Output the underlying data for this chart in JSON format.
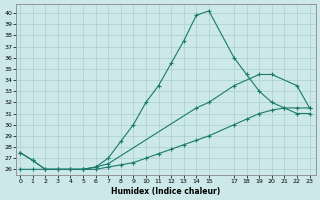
{
  "xlabel": "Humidex (Indice chaleur)",
  "background_color": "#cce8e8",
  "grid_color": "#aacfcf",
  "line_color": "#1a7a6a",
  "x_ticks": [
    0,
    1,
    2,
    3,
    4,
    5,
    6,
    7,
    8,
    9,
    10,
    11,
    12,
    13,
    14,
    15,
    17,
    18,
    19,
    20,
    21,
    22,
    23
  ],
  "ylim": [
    25.5,
    40.8
  ],
  "xlim": [
    -0.3,
    23.5
  ],
  "yticks": [
    26,
    27,
    28,
    29,
    30,
    31,
    32,
    33,
    34,
    35,
    36,
    37,
    38,
    39,
    40
  ],
  "line1_x": [
    0,
    1,
    2,
    3,
    4,
    5,
    6,
    7,
    8,
    9,
    10,
    11,
    12,
    13,
    14,
    15,
    17,
    18,
    19,
    20,
    21,
    22,
    23
  ],
  "line1_y": [
    27.5,
    26.8,
    26.0,
    26.0,
    26.0,
    26.0,
    26.2,
    27.0,
    28.5,
    30.0,
    32.0,
    33.5,
    35.5,
    37.5,
    39.8,
    40.2,
    36.0,
    34.5,
    33.0,
    32.0,
    31.5,
    31.0,
    31.0
  ],
  "line2_x": [
    0,
    1,
    2,
    3,
    4,
    5,
    6,
    7,
    14,
    15,
    17,
    19,
    20,
    22,
    23
  ],
  "line2_y": [
    27.5,
    26.8,
    26.0,
    26.0,
    26.0,
    26.0,
    26.2,
    26.5,
    31.5,
    32.0,
    33.5,
    34.5,
    34.5,
    33.5,
    31.5
  ],
  "line3_x": [
    0,
    1,
    2,
    3,
    4,
    5,
    6,
    7,
    8,
    9,
    10,
    11,
    12,
    13,
    14,
    15,
    17,
    18,
    19,
    20,
    21,
    22,
    23
  ],
  "line3_y": [
    26.0,
    26.0,
    26.0,
    26.0,
    26.0,
    26.0,
    26.0,
    26.2,
    26.4,
    26.6,
    27.0,
    27.4,
    27.8,
    28.2,
    28.6,
    29.0,
    30.0,
    30.5,
    31.0,
    31.3,
    31.5,
    31.5,
    31.5
  ]
}
